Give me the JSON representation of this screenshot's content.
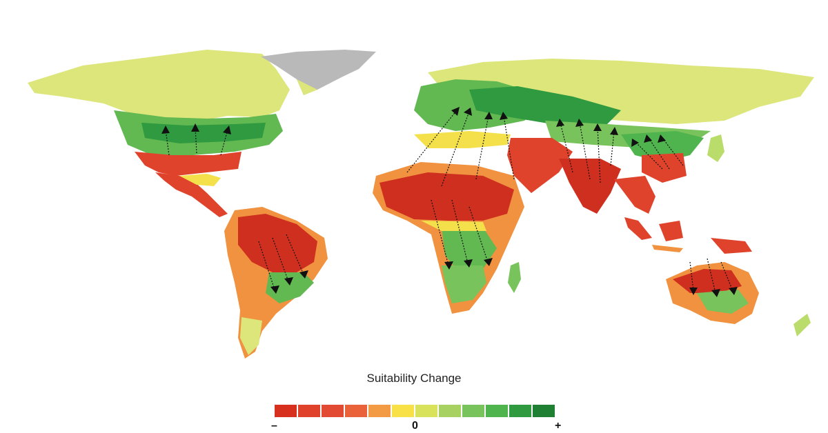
{
  "legend": {
    "title": "Suitability Change",
    "ticks": {
      "low": "–",
      "mid": "0",
      "high": "+"
    },
    "colors": [
      "#d7301f",
      "#e0412a",
      "#e34a33",
      "#e9623a",
      "#f39a45",
      "#f7e146",
      "#d8e25a",
      "#a7d262",
      "#78c35b",
      "#4fb34e",
      "#2f9a3f",
      "#1f7f33"
    ]
  },
  "palette": {
    "ocean": "#ffffff",
    "ice": "#b9b9b9",
    "tundra": "#dde67a",
    "light_green": "#b9dc6a",
    "green": "#62b851",
    "dark_green": "#2f9a3f",
    "yellow": "#f3e04b",
    "orange": "#f0923f",
    "red": "#e0432c",
    "dark_red": "#cf2f1f",
    "arrow": "#111111"
  }
}
